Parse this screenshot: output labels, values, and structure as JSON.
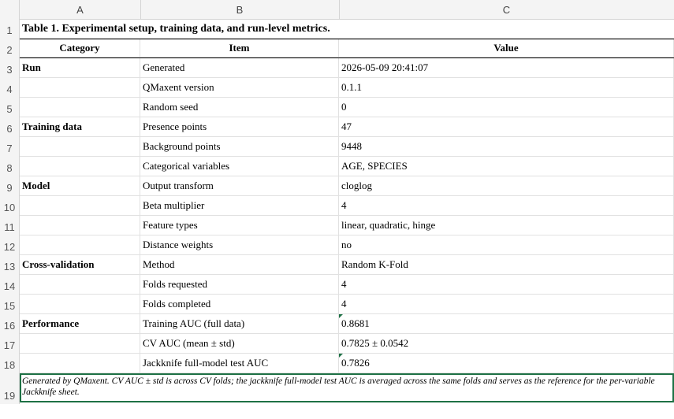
{
  "columns": [
    "A",
    "B",
    "C"
  ],
  "rows": [
    "1",
    "2",
    "3",
    "4",
    "5",
    "6",
    "7",
    "8",
    "9",
    "10",
    "11",
    "12",
    "13",
    "14",
    "15",
    "16",
    "17",
    "18",
    "19"
  ],
  "title": "Table 1. Experimental setup, training data, and run-level metrics.",
  "header": {
    "category": "Category",
    "item": "Item",
    "value": "Value"
  },
  "data": [
    {
      "category": "Run",
      "item": "Generated",
      "value": "2026-05-09 20:41:07"
    },
    {
      "category": "",
      "item": "QMaxent version",
      "value": "0.1.1"
    },
    {
      "category": "",
      "item": "Random seed",
      "value": "0"
    },
    {
      "category": "Training data",
      "item": "Presence points",
      "value": "47"
    },
    {
      "category": "",
      "item": "Background points",
      "value": "9448"
    },
    {
      "category": "",
      "item": "Categorical variables",
      "value": "AGE, SPECIES"
    },
    {
      "category": "Model",
      "item": "Output transform",
      "value": "cloglog"
    },
    {
      "category": "",
      "item": "Beta multiplier",
      "value": "4"
    },
    {
      "category": "",
      "item": "Feature types",
      "value": "linear, quadratic, hinge"
    },
    {
      "category": "",
      "item": "Distance weights",
      "value": "no"
    },
    {
      "category": "Cross-validation",
      "item": "Method",
      "value": "Random K-Fold"
    },
    {
      "category": "",
      "item": "Folds requested",
      "value": "4"
    },
    {
      "category": "",
      "item": "Folds completed",
      "value": "4"
    },
    {
      "category": "Performance",
      "item": "Training AUC (full data)",
      "value": "0.8681"
    },
    {
      "category": "",
      "item": "CV AUC (mean ± std)",
      "value": "0.7825 ± 0.0542"
    },
    {
      "category": "",
      "item": "Jackknife full-model test AUC",
      "value": "0.7826"
    }
  ],
  "note": "Generated by QMaxent. CV AUC ± std is across CV folds; the jackknife full-model test AUC is averaged across the same folds and serves as the reference for the per-variable Jackknife sheet.",
  "colors": {
    "selection": "#1e7145",
    "grid": "#e1e1e1",
    "header_bg": "#f4f4f4"
  }
}
